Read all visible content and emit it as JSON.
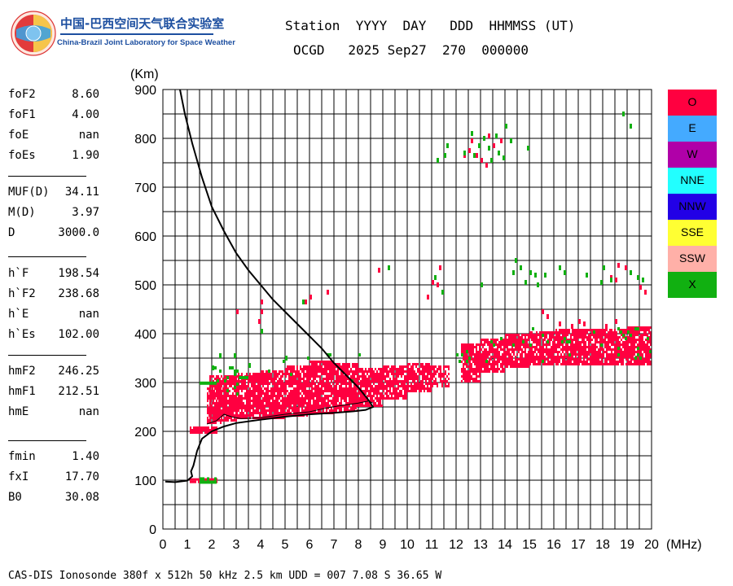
{
  "header": {
    "org_cn": "中国-巴西空间天气联合实验室",
    "org_en": "China-Brazil Joint Laboratory for Space Weather",
    "line1": "Station  YYYY  DAY   DDD  HHMMSS (UT)",
    "line2": "OCGD   2025 Sep27  270  000000"
  },
  "params": [
    {
      "label": "foF2",
      "value": "8.60"
    },
    {
      "label": "foF1",
      "value": "4.00"
    },
    {
      "label": "foE",
      "value": "nan"
    },
    {
      "label": "foEs",
      "value": "1.90"
    },
    {
      "label": "MUF(D)",
      "value": "34.11"
    },
    {
      "label": "M(D)",
      "value": "3.97"
    },
    {
      "label": "D",
      "value": "3000.0"
    },
    {
      "label": "h`F",
      "value": "198.54"
    },
    {
      "label": "h`F2",
      "value": "238.68"
    },
    {
      "label": "h`E",
      "value": "nan"
    },
    {
      "label": "h`Es",
      "value": "102.00"
    },
    {
      "label": "hmF2",
      "value": "246.25"
    },
    {
      "label": "hmF1",
      "value": "212.51"
    },
    {
      "label": "hmE",
      "value": "nan"
    },
    {
      "label": "fmin",
      "value": "1.40"
    },
    {
      "label": "fxI",
      "value": "17.70"
    },
    {
      "label": "B0",
      "value": "30.08"
    }
  ],
  "legend": [
    {
      "label": "O",
      "color": "#ff0040"
    },
    {
      "label": "E",
      "color": "#44aaff"
    },
    {
      "label": "W",
      "color": "#b000a8"
    },
    {
      "label": "NNE",
      "color": "#22ffff"
    },
    {
      "label": "NNW",
      "color": "#2200e6"
    },
    {
      "label": "SSE",
      "color": "#ffff33"
    },
    {
      "label": "SSW",
      "color": "#ffb0a8"
    },
    {
      "label": "X",
      "color": "#11b011"
    }
  ],
  "footer": "CAS-DIS Ionosonde 380f x 512h 50 kHz 2.5 km UDD = 007 7.08 S 36.65 W",
  "chart_data": {
    "type": "scatter",
    "xlabel": "(MHz)",
    "ylabel": "(Km)",
    "xlim": [
      0,
      20
    ],
    "ylim": [
      0,
      900
    ],
    "x_ticks": [
      0,
      1,
      2,
      3,
      4,
      5,
      6,
      7,
      8,
      9,
      10,
      11,
      12,
      13,
      14,
      15,
      16,
      17,
      18,
      19,
      20
    ],
    "y_ticks": [
      0,
      100,
      200,
      300,
      400,
      500,
      600,
      700,
      800,
      900
    ],
    "grid": true,
    "o_color": "#ff0040",
    "x_color": "#11b011",
    "profile_color": "#000000",
    "trace_o": [
      {
        "x0": 1.1,
        "x1": 2.2,
        "y0": 195,
        "y1": 210,
        "density": 0.9
      },
      {
        "x0": 1.8,
        "x1": 2.4,
        "y0": 215,
        "y1": 290,
        "density": 0.6
      },
      {
        "x0": 1.9,
        "x1": 3.0,
        "y0": 220,
        "y1": 315,
        "density": 0.85
      },
      {
        "x0": 3.0,
        "x1": 4.0,
        "y0": 225,
        "y1": 320,
        "density": 0.85
      },
      {
        "x0": 4.0,
        "x1": 5.0,
        "y0": 228,
        "y1": 325,
        "density": 0.85
      },
      {
        "x0": 5.0,
        "x1": 6.0,
        "y0": 232,
        "y1": 335,
        "density": 0.85
      },
      {
        "x0": 6.0,
        "x1": 7.0,
        "y0": 236,
        "y1": 345,
        "density": 0.85
      },
      {
        "x0": 7.0,
        "x1": 8.0,
        "y0": 240,
        "y1": 340,
        "density": 0.85
      },
      {
        "x0": 8.0,
        "x1": 9.0,
        "y0": 250,
        "y1": 330,
        "density": 0.85
      },
      {
        "x0": 9.0,
        "x1": 10.0,
        "y0": 265,
        "y1": 335,
        "density": 0.85
      },
      {
        "x0": 10.0,
        "x1": 11.0,
        "y0": 280,
        "y1": 340,
        "density": 0.85
      },
      {
        "x0": 11.0,
        "x1": 11.7,
        "y0": 290,
        "y1": 335,
        "density": 0.7
      },
      {
        "x0": 12.2,
        "x1": 13.0,
        "y0": 300,
        "y1": 380,
        "density": 0.8
      },
      {
        "x0": 13.0,
        "x1": 14.0,
        "y0": 320,
        "y1": 390,
        "density": 0.85
      },
      {
        "x0": 14.0,
        "x1": 15.0,
        "y0": 330,
        "y1": 400,
        "density": 0.85
      },
      {
        "x0": 15.0,
        "x1": 16.0,
        "y0": 335,
        "y1": 405,
        "density": 0.85
      },
      {
        "x0": 16.0,
        "x1": 17.0,
        "y0": 335,
        "y1": 410,
        "density": 0.85
      },
      {
        "x0": 17.0,
        "x1": 18.0,
        "y0": 335,
        "y1": 410,
        "density": 0.85
      },
      {
        "x0": 18.0,
        "x1": 19.0,
        "y0": 335,
        "y1": 410,
        "density": 0.85
      },
      {
        "x0": 19.0,
        "x1": 20.0,
        "y0": 335,
        "y1": 415,
        "density": 0.85
      },
      {
        "x0": 1.1,
        "x1": 2.2,
        "y0": 96,
        "y1": 104,
        "density": 0.95
      }
    ],
    "trace_x": [
      {
        "x0": 1.5,
        "x1": 2.2,
        "y0": 296,
        "y1": 302,
        "density": 1.0
      },
      {
        "x0": 1.5,
        "x1": 2.2,
        "y0": 96,
        "y1": 106,
        "density": 0.8
      },
      {
        "x0": 2.0,
        "x1": 3.5,
        "y0": 275,
        "y1": 340,
        "density": 0.08
      },
      {
        "x0": 4.0,
        "x1": 8.5,
        "y0": 300,
        "y1": 360,
        "density": 0.02
      },
      {
        "x0": 12.0,
        "x1": 20.0,
        "y0": 340,
        "y1": 420,
        "density": 0.035
      }
    ],
    "scatter_o": [
      [
        3.0,
        450
      ],
      [
        4.0,
        450
      ],
      [
        4.0,
        470
      ],
      [
        3.9,
        430
      ],
      [
        5.8,
        470
      ],
      [
        6.0,
        480
      ],
      [
        6.7,
        490
      ],
      [
        8.8,
        535
      ],
      [
        10.8,
        480
      ],
      [
        11.0,
        510
      ],
      [
        11.2,
        505
      ],
      [
        11.3,
        540
      ],
      [
        12.3,
        770
      ],
      [
        12.5,
        780
      ],
      [
        12.8,
        770
      ],
      [
        13.0,
        760
      ],
      [
        13.2,
        750
      ],
      [
        13.5,
        790
      ],
      [
        13.8,
        800
      ],
      [
        13.3,
        810
      ],
      [
        12.6,
        800
      ],
      [
        15.5,
        450
      ],
      [
        15.7,
        440
      ],
      [
        16.2,
        425
      ],
      [
        16.7,
        420
      ],
      [
        17.0,
        430
      ],
      [
        17.2,
        425
      ],
      [
        18.5,
        430
      ],
      [
        18.1,
        420
      ],
      [
        18.5,
        515
      ],
      [
        18.6,
        545
      ],
      [
        19.5,
        500
      ],
      [
        19.7,
        490
      ],
      [
        18.3,
        520
      ],
      [
        18.9,
        540
      ]
    ],
    "scatter_x": [
      [
        2.0,
        335
      ],
      [
        2.3,
        360
      ],
      [
        2.9,
        360
      ],
      [
        3.5,
        340
      ],
      [
        4.0,
        410
      ],
      [
        5.0,
        355
      ],
      [
        5.7,
        470
      ],
      [
        9.2,
        540
      ],
      [
        11.4,
        490
      ],
      [
        11.1,
        520
      ],
      [
        11.5,
        770
      ],
      [
        11.6,
        790
      ],
      [
        11.2,
        760
      ],
      [
        12.3,
        775
      ],
      [
        12.6,
        815
      ],
      [
        12.9,
        790
      ],
      [
        13.1,
        805
      ],
      [
        13.3,
        785
      ],
      [
        13.6,
        810
      ],
      [
        13.9,
        765
      ],
      [
        14.0,
        830
      ],
      [
        14.2,
        800
      ],
      [
        13.7,
        775
      ],
      [
        14.9,
        785
      ],
      [
        12.7,
        770
      ],
      [
        13.4,
        760
      ],
      [
        14.3,
        530
      ],
      [
        14.6,
        540
      ],
      [
        14.8,
        510
      ],
      [
        15.0,
        530
      ],
      [
        15.2,
        525
      ],
      [
        15.3,
        505
      ],
      [
        15.6,
        525
      ],
      [
        16.2,
        540
      ],
      [
        16.4,
        530
      ],
      [
        17.3,
        525
      ],
      [
        18.0,
        540
      ],
      [
        18.3,
        515
      ],
      [
        19.1,
        530
      ],
      [
        19.4,
        520
      ],
      [
        19.6,
        515
      ],
      [
        18.8,
        855
      ],
      [
        19.1,
        830
      ],
      [
        17.9,
        510
      ],
      [
        14.4,
        555
      ],
      [
        13.0,
        505
      ]
    ],
    "profile_o": [
      [
        0.1,
        97
      ],
      [
        0.5,
        96
      ],
      [
        1.0,
        99
      ],
      [
        1.2,
        108
      ],
      [
        1.15,
        118
      ],
      [
        1.25,
        130
      ],
      [
        1.4,
        160
      ],
      [
        1.6,
        185
      ],
      [
        2.0,
        200
      ],
      [
        2.5,
        210
      ],
      [
        3.0,
        217
      ],
      [
        4.0,
        224
      ],
      [
        5.0,
        230
      ],
      [
        6.0,
        235
      ],
      [
        7.0,
        238
      ],
      [
        7.8,
        241
      ],
      [
        8.3,
        244
      ],
      [
        8.6,
        250
      ],
      [
        8.4,
        265
      ],
      [
        8.0,
        290
      ],
      [
        7.5,
        315
      ],
      [
        7.0,
        340
      ],
      [
        6.5,
        370
      ],
      [
        6.0,
        395
      ],
      [
        5.5,
        420
      ],
      [
        5.0,
        445
      ],
      [
        4.5,
        470
      ],
      [
        4.0,
        500
      ],
      [
        3.5,
        530
      ],
      [
        3.0,
        565
      ],
      [
        2.5,
        610
      ],
      [
        2.0,
        660
      ],
      [
        1.6,
        720
      ],
      [
        1.2,
        790
      ],
      [
        0.9,
        850
      ],
      [
        0.7,
        900
      ]
    ],
    "profile_inner": [
      [
        1.8,
        215
      ],
      [
        2.2,
        222
      ],
      [
        2.5,
        235
      ],
      [
        2.8,
        230
      ],
      [
        3.2,
        226
      ],
      [
        4.0,
        228
      ],
      [
        5.0,
        235
      ],
      [
        6.0,
        240
      ],
      [
        6.7,
        248
      ],
      [
        7.2,
        252
      ],
      [
        7.6,
        255
      ],
      [
        8.0,
        258
      ],
      [
        8.4,
        262
      ],
      [
        8.6,
        258
      ]
    ]
  }
}
